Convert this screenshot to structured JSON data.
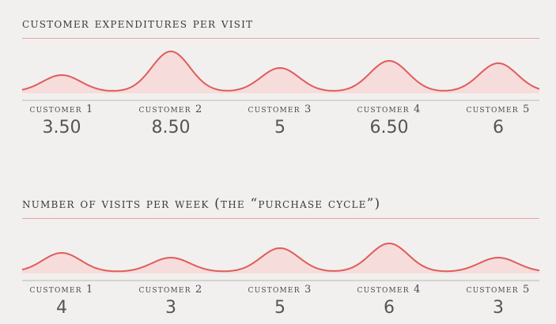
{
  "colors": {
    "background": "#f1f0ee",
    "line": "#e05c5c",
    "fill": "#f6dcda",
    "rule": "#e7a3a3",
    "baseline": "#d6d4d1"
  },
  "chart_data": [
    {
      "type": "area",
      "title": "customer expenditures per visit",
      "categories": [
        "customer 1",
        "customer 2",
        "customer 3",
        "customer 4",
        "customer 5"
      ],
      "values": [
        3.5,
        8.5,
        5,
        6.5,
        6
      ],
      "value_labels": [
        "3.50",
        "8.50",
        "5",
        "6.50",
        "6"
      ],
      "xlabel": "",
      "ylabel": "",
      "grid": false
    },
    {
      "type": "area",
      "title": "number of visits per week (the “purchase cycle”)",
      "categories": [
        "customer 1",
        "customer 2",
        "customer 3",
        "customer 4",
        "customer 5"
      ],
      "values": [
        4,
        3,
        5,
        6,
        3
      ],
      "value_labels": [
        "4",
        "3",
        "5",
        "6",
        "3"
      ],
      "xlabel": "",
      "ylabel": "",
      "grid": false
    }
  ]
}
